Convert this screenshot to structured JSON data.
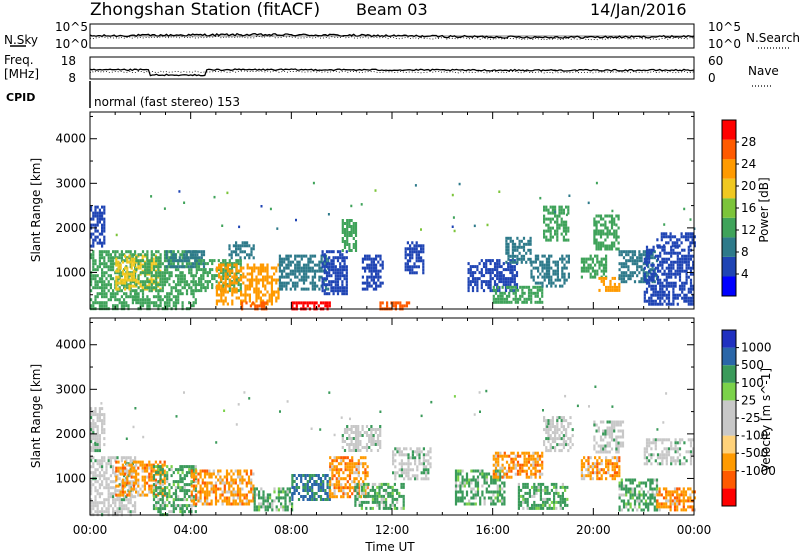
{
  "header": {
    "station": "Zhongshan Station (fitACF)",
    "beam": "Beam 03",
    "date": "14/Jan/2016"
  },
  "top_panels": {
    "nsky_label": "N.Sky",
    "nsky_ticks": [
      "10^5",
      "10^0"
    ],
    "nsearch_label": "N.Search",
    "nsearch_ticks": [
      "10^5",
      "10^0"
    ],
    "freq_label_1": "Freq.",
    "freq_label_2": "[MHz]",
    "freq_ticks": [
      "18",
      "8"
    ],
    "nave_label": "Nave",
    "nave_ticks": [
      "60",
      "0"
    ],
    "cpid_label": "CPID",
    "cpid_text": "normal (fast stereo) 153"
  },
  "colors": {
    "power_scale": [
      "#0000ff",
      "#1f44b4",
      "#2e7a8a",
      "#3fa35a",
      "#7cc43a",
      "#f0c820",
      "#ff9a00",
      "#ff5a00",
      "#ff0000"
    ],
    "velocity_scale": [
      "#ff0000",
      "#ff5a00",
      "#ff9a00",
      "#ffd27a",
      "#c8c8c8",
      "#c8c8c8",
      "#7bd24a",
      "#3a9a5a",
      "#2a66a8",
      "#2030c0"
    ]
  },
  "chart_data": [
    {
      "type": "heatmap",
      "name": "power-panel",
      "xlabel": "",
      "ylabel": "Slant Range [km]",
      "colorbar_label": "Power [dB]",
      "x_ticks": [
        "00:00",
        "04:00",
        "08:00",
        "12:00",
        "16:00",
        "20:00",
        "00:00"
      ],
      "y_ticks": [
        "1000",
        "2000",
        "3000",
        "4000"
      ],
      "colorbar_ticks": [
        "4",
        "8",
        "12",
        "16",
        "20",
        "24",
        "28"
      ],
      "colorbar_range": [
        0,
        32
      ],
      "xlim": [
        0,
        24
      ],
      "ylim": [
        180,
        4600
      ],
      "x_unit": "hours UT",
      "y_unit": "km",
      "regions": [
        {
          "t": [
            0.0,
            1.8
          ],
          "r": [
            200,
            1500
          ],
          "v": 14
        },
        {
          "t": [
            0.0,
            0.6
          ],
          "r": [
            1600,
            2500
          ],
          "v": 6
        },
        {
          "t": [
            1.0,
            2.8
          ],
          "r": [
            600,
            1400
          ],
          "v": 20
        },
        {
          "t": [
            1.8,
            4.2
          ],
          "r": [
            200,
            1500
          ],
          "v": 13
        },
        {
          "t": [
            3.0,
            4.5
          ],
          "r": [
            1100,
            1500
          ],
          "v": 8
        },
        {
          "t": [
            4.2,
            6.0
          ],
          "r": [
            600,
            1300
          ],
          "v": 12
        },
        {
          "t": [
            5.0,
            7.5
          ],
          "r": [
            300,
            1200
          ],
          "v": 22
        },
        {
          "t": [
            5.5,
            6.5
          ],
          "r": [
            1300,
            1700
          ],
          "v": 9
        },
        {
          "t": [
            6.0,
            7.0
          ],
          "r": [
            200,
            350
          ],
          "v": 28
        },
        {
          "t": [
            7.5,
            9.5
          ],
          "r": [
            600,
            1400
          ],
          "v": 8
        },
        {
          "t": [
            8.0,
            9.5
          ],
          "r": [
            200,
            350
          ],
          "v": 30
        },
        {
          "t": [
            9.2,
            10.2
          ],
          "r": [
            500,
            1500
          ],
          "v": 6
        },
        {
          "t": [
            10.0,
            10.6
          ],
          "r": [
            1500,
            2200
          ],
          "v": 14
        },
        {
          "t": [
            10.8,
            11.6
          ],
          "r": [
            600,
            1400
          ],
          "v": 6
        },
        {
          "t": [
            11.5,
            12.8
          ],
          "r": [
            200,
            350
          ],
          "v": 28
        },
        {
          "t": [
            12.5,
            13.2
          ],
          "r": [
            1000,
            1700
          ],
          "v": 7
        },
        {
          "t": [
            15.0,
            17.0
          ],
          "r": [
            600,
            1300
          ],
          "v": 7
        },
        {
          "t": [
            16.5,
            17.5
          ],
          "r": [
            1200,
            1800
          ],
          "v": 9
        },
        {
          "t": [
            16.0,
            18.0
          ],
          "r": [
            300,
            700
          ],
          "v": 12
        },
        {
          "t": [
            17.5,
            19.0
          ],
          "r": [
            700,
            1400
          ],
          "v": 10
        },
        {
          "t": [
            18.0,
            19.0
          ],
          "r": [
            1700,
            2500
          ],
          "v": 11
        },
        {
          "t": [
            19.5,
            20.5
          ],
          "r": [
            900,
            1400
          ],
          "v": 14
        },
        {
          "t": [
            20.0,
            21.0
          ],
          "r": [
            1500,
            2300
          ],
          "v": 12
        },
        {
          "t": [
            20.2,
            21.0
          ],
          "r": [
            600,
            900
          ],
          "v": 22
        },
        {
          "t": [
            21.0,
            22.5
          ],
          "r": [
            800,
            1500
          ],
          "v": 10
        },
        {
          "t": [
            22.0,
            24.0
          ],
          "r": [
            300,
            1600
          ],
          "v": 6
        },
        {
          "t": [
            22.5,
            24.0
          ],
          "r": [
            1600,
            1900
          ],
          "v": 6
        }
      ]
    },
    {
      "type": "heatmap",
      "name": "velocity-panel",
      "xlabel": "Time UT",
      "ylabel": "Slant Range [km]",
      "colorbar_label": "Velocity [m s^-1]",
      "x_ticks": [
        "00:00",
        "04:00",
        "08:00",
        "12:00",
        "16:00",
        "20:00",
        "00:00"
      ],
      "y_ticks": [
        "1000",
        "2000",
        "3000",
        "4000"
      ],
      "colorbar_ticks": [
        "1000",
        "500",
        "100",
        "25",
        "-25",
        "-100",
        "-500",
        "-1000"
      ],
      "xlim": [
        0,
        24
      ],
      "ylim": [
        180,
        4600
      ],
      "x_unit": "hours UT",
      "y_unit": "km",
      "regions": [
        {
          "t": [
            0.0,
            1.8
          ],
          "r": [
            200,
            1500
          ],
          "v": "gy"
        },
        {
          "t": [
            0.0,
            0.6
          ],
          "r": [
            1600,
            2600
          ],
          "v": "gy"
        },
        {
          "t": [
            1.0,
            3.0
          ],
          "r": [
            600,
            1400
          ],
          "v": "or"
        },
        {
          "t": [
            2.5,
            4.2
          ],
          "r": [
            200,
            1300
          ],
          "v": "gn"
        },
        {
          "t": [
            4.0,
            6.5
          ],
          "r": [
            400,
            1200
          ],
          "v": "or"
        },
        {
          "t": [
            6.5,
            8.0
          ],
          "r": [
            300,
            800
          ],
          "v": "gn"
        },
        {
          "t": [
            8.0,
            9.5
          ],
          "r": [
            500,
            1100
          ],
          "v": "bl"
        },
        {
          "t": [
            9.5,
            11.0
          ],
          "r": [
            600,
            1500
          ],
          "v": "or"
        },
        {
          "t": [
            10.0,
            11.5
          ],
          "r": [
            1600,
            2200
          ],
          "v": "gy"
        },
        {
          "t": [
            10.5,
            12.5
          ],
          "r": [
            300,
            900
          ],
          "v": "gn"
        },
        {
          "t": [
            12.0,
            13.5
          ],
          "r": [
            1000,
            1700
          ],
          "v": "gy"
        },
        {
          "t": [
            14.5,
            16.5
          ],
          "r": [
            400,
            1200
          ],
          "v": "gn"
        },
        {
          "t": [
            16.0,
            18.0
          ],
          "r": [
            1000,
            1600
          ],
          "v": "or"
        },
        {
          "t": [
            17.0,
            19.0
          ],
          "r": [
            300,
            900
          ],
          "v": "gn"
        },
        {
          "t": [
            18.0,
            19.2
          ],
          "r": [
            1600,
            2400
          ],
          "v": "gy"
        },
        {
          "t": [
            19.5,
            21.0
          ],
          "r": [
            1000,
            1500
          ],
          "v": "or"
        },
        {
          "t": [
            20.0,
            21.2
          ],
          "r": [
            1600,
            2300
          ],
          "v": "gy"
        },
        {
          "t": [
            21.0,
            22.5
          ],
          "r": [
            300,
            1000
          ],
          "v": "gn"
        },
        {
          "t": [
            22.0,
            24.0
          ],
          "r": [
            1300,
            1900
          ],
          "v": "gy"
        },
        {
          "t": [
            22.5,
            24.0
          ],
          "r": [
            300,
            800
          ],
          "v": "or"
        }
      ]
    }
  ]
}
